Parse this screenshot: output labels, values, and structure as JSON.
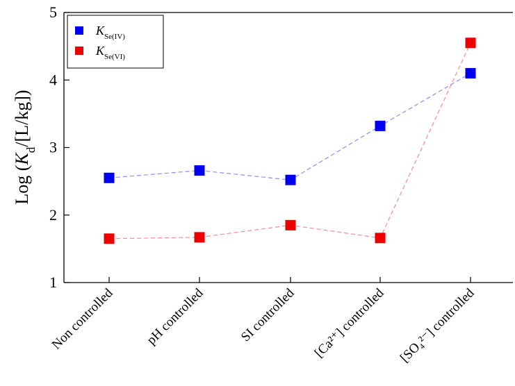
{
  "chart_data": {
    "type": "scatter",
    "categories": [
      "Non controlled",
      "pH  controlled",
      "SI controlled",
      "[Ca²⁺] controlled",
      "[SO₄²⁻] controlled"
    ],
    "ylabel": "Log (K_d/[L/kg])",
    "ylim": [
      1,
      5
    ],
    "yticks": [
      1,
      2,
      3,
      4,
      5
    ],
    "grid": false,
    "legend_position": "top-left",
    "series": [
      {
        "name": "K_Se(IV)",
        "legend_main": "K",
        "legend_sub": "Se(IV)",
        "color": "#0000ee",
        "values": [
          2.55,
          2.66,
          2.52,
          3.32,
          4.1
        ]
      },
      {
        "name": "K_Se(VI)",
        "legend_main": "K",
        "legend_sub": "Se(VI)",
        "color": "#ee0000",
        "values": [
          1.65,
          1.67,
          1.85,
          1.66,
          4.55
        ]
      }
    ]
  }
}
